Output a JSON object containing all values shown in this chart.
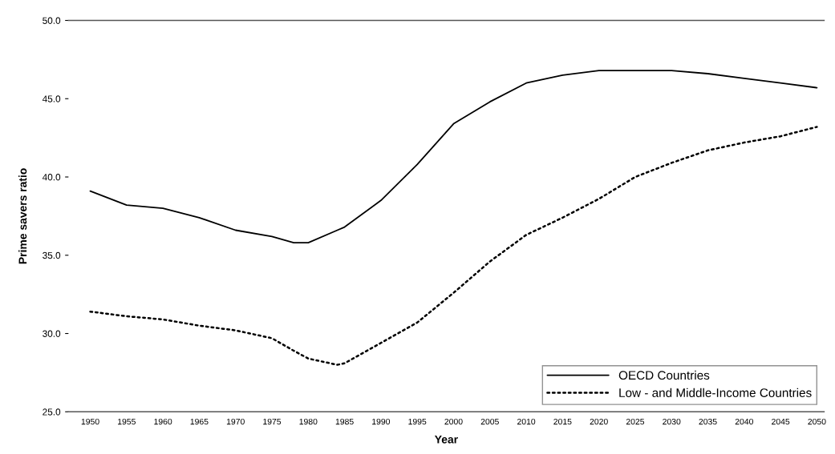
{
  "chart_data": {
    "type": "line",
    "xlabel": "Year",
    "ylabel": "Prime savers ratio",
    "x": [
      1950,
      1955,
      1960,
      1965,
      1970,
      1975,
      1978,
      1980,
      1984,
      1985,
      1990,
      1995,
      2000,
      2005,
      2010,
      2015,
      2020,
      2025,
      2030,
      2035,
      2040,
      2045,
      2050
    ],
    "series": [
      {
        "name": "OECD Countries",
        "color": "#000000",
        "line_style": "solid",
        "values": [
          39.1,
          38.2,
          38.0,
          37.4,
          36.6,
          36.2,
          35.8,
          35.8,
          36.6,
          36.8,
          38.5,
          40.8,
          43.4,
          44.8,
          46.0,
          46.5,
          46.8,
          46.8,
          46.8,
          46.6,
          46.3,
          46.0,
          45.7
        ]
      },
      {
        "name": "Low - and Middle-Income Countries",
        "color": "#000000",
        "line_style": "dotted",
        "values": [
          31.4,
          31.1,
          30.9,
          30.5,
          30.2,
          29.7,
          28.9,
          28.4,
          28.0,
          28.1,
          29.4,
          30.7,
          32.6,
          34.6,
          36.3,
          37.4,
          38.6,
          40.0,
          40.9,
          41.7,
          42.2,
          42.6,
          43.2
        ]
      }
    ],
    "xlim": [
      1947,
      2051
    ],
    "xticks": [
      1950,
      1955,
      1960,
      1965,
      1970,
      1975,
      1980,
      1985,
      1990,
      1995,
      2000,
      2005,
      2010,
      2015,
      2020,
      2025,
      2030,
      2035,
      2040,
      2045,
      2050
    ],
    "ylim": [
      25,
      50
    ],
    "yticks": [
      {
        "value": 25,
        "label": "25.0"
      },
      {
        "value": 30,
        "label": "30.0"
      },
      {
        "value": 35,
        "label": "35.0"
      },
      {
        "value": 40,
        "label": "40.0"
      },
      {
        "value": 45,
        "label": "45.0"
      },
      {
        "value": 50,
        "label": "50.0"
      }
    ],
    "grid": false,
    "legend": "bottom right",
    "marker": "none"
  }
}
